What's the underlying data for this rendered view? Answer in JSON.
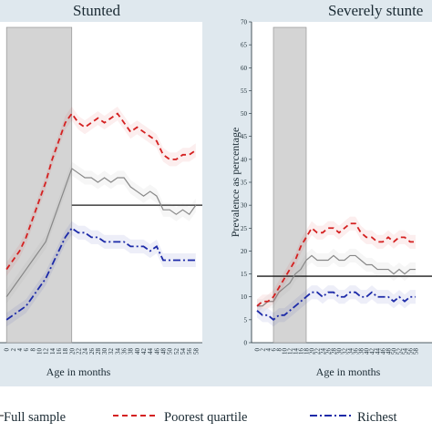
{
  "chart_data": [
    {
      "type": "line",
      "title": "Stunted",
      "xlabel": "Age in months",
      "ylabel": "",
      "x_range": [
        0,
        59
      ],
      "y_range": [
        0,
        70
      ],
      "shaded_region": [
        0,
        20
      ],
      "reference_line": 30,
      "x_tick_labels": [
        "0",
        "2",
        "4",
        "6",
        "8",
        "10",
        "12",
        "14",
        "16",
        "18",
        "20",
        "22",
        "24",
        "26",
        "28",
        "30",
        "32",
        "34",
        "36",
        "38",
        "40",
        "42",
        "44",
        "46",
        "48",
        "50",
        "52",
        "54",
        "56",
        "58"
      ],
      "series": [
        {
          "name": "Full sample",
          "color": "#888888",
          "style": "solid",
          "x": [
            0,
            2,
            4,
            6,
            8,
            10,
            12,
            14,
            16,
            18,
            20,
            22,
            24,
            26,
            28,
            30,
            32,
            34,
            36,
            38,
            40,
            42,
            44,
            46,
            48,
            50,
            52,
            54,
            56,
            58
          ],
          "y": [
            10,
            12,
            14,
            16,
            18,
            20,
            22,
            26,
            30,
            34,
            38,
            37,
            36,
            36,
            35,
            36,
            35,
            36,
            36,
            34,
            33,
            32,
            33,
            32,
            29,
            29,
            28,
            29,
            28,
            30
          ]
        },
        {
          "name": "Poorest quartile",
          "color": "#d42020",
          "style": "dashed",
          "x": [
            0,
            2,
            4,
            6,
            8,
            10,
            12,
            14,
            16,
            18,
            20,
            22,
            24,
            26,
            28,
            30,
            32,
            34,
            36,
            38,
            40,
            42,
            44,
            46,
            48,
            50,
            52,
            54,
            56,
            58
          ],
          "y": [
            16,
            18,
            20,
            23,
            27,
            31,
            35,
            40,
            44,
            48,
            50,
            48,
            47,
            48,
            49,
            48,
            49,
            50,
            48,
            46,
            47,
            46,
            45,
            44,
            41,
            40,
            40,
            41,
            41,
            42
          ]
        },
        {
          "name": "Richest",
          "color": "#1c2aa8",
          "style": "dashdot",
          "x": [
            0,
            2,
            4,
            6,
            8,
            10,
            12,
            14,
            16,
            18,
            20,
            22,
            24,
            26,
            28,
            30,
            32,
            34,
            36,
            38,
            40,
            42,
            44,
            46,
            48,
            50,
            52,
            54,
            56,
            58
          ],
          "y": [
            5,
            6,
            7,
            8,
            10,
            12,
            14,
            17,
            20,
            23,
            25,
            24,
            24,
            23,
            23,
            22,
            22,
            22,
            22,
            21,
            21,
            21,
            20,
            21,
            18,
            18,
            18,
            18,
            18,
            18
          ]
        }
      ]
    },
    {
      "type": "line",
      "title": "Severely stunte",
      "xlabel": "Age in months",
      "ylabel": "Prevalence as percentage",
      "x_range": [
        0,
        59
      ],
      "y_range": [
        0,
        70
      ],
      "y_ticks": [
        0,
        5,
        10,
        15,
        20,
        25,
        30,
        35,
        40,
        45,
        50,
        55,
        60,
        65,
        70
      ],
      "shaded_region": [
        6,
        18
      ],
      "reference_line": 14.5,
      "x_tick_labels": [
        "0",
        "2",
        "4",
        "6",
        "8",
        "10",
        "12",
        "14",
        "16",
        "18",
        "20",
        "22",
        "24",
        "26",
        "28",
        "30",
        "32",
        "34",
        "36",
        "38",
        "40",
        "42",
        "44",
        "46",
        "48",
        "50",
        "52",
        "54",
        "56",
        "58"
      ],
      "series": [
        {
          "name": "Full sample",
          "color": "#888888",
          "style": "solid",
          "x": [
            0,
            2,
            4,
            6,
            8,
            10,
            12,
            14,
            16,
            18,
            20,
            22,
            24,
            26,
            28,
            30,
            32,
            34,
            36,
            38,
            40,
            42,
            44,
            46,
            48,
            50,
            52,
            54,
            56,
            58
          ],
          "y": [
            8,
            8,
            9,
            9,
            11,
            12,
            13,
            15,
            16,
            18,
            19,
            18,
            18,
            18,
            19,
            18,
            18,
            19,
            19,
            18,
            17,
            17,
            16,
            16,
            16,
            15,
            16,
            15,
            16,
            16
          ]
        },
        {
          "name": "Poorest quartile",
          "color": "#d42020",
          "style": "dashed",
          "x": [
            0,
            2,
            4,
            6,
            8,
            10,
            12,
            14,
            16,
            18,
            20,
            22,
            24,
            26,
            28,
            30,
            32,
            34,
            36,
            38,
            40,
            42,
            44,
            46,
            48,
            50,
            52,
            54,
            56,
            58
          ],
          "y": [
            8,
            9,
            9,
            10,
            12,
            14,
            16,
            18,
            21,
            23,
            25,
            24,
            24,
            25,
            25,
            24,
            25,
            26,
            26,
            24,
            23,
            23,
            22,
            22,
            23,
            22,
            23,
            23,
            22,
            22
          ]
        },
        {
          "name": "Richest",
          "color": "#1c2aa8",
          "style": "dashdot",
          "x": [
            0,
            2,
            4,
            6,
            8,
            10,
            12,
            14,
            16,
            18,
            20,
            22,
            24,
            26,
            28,
            30,
            32,
            34,
            36,
            38,
            40,
            42,
            44,
            46,
            48,
            50,
            52,
            54,
            56,
            58
          ],
          "y": [
            7,
            6,
            6,
            5,
            6,
            6,
            7,
            8,
            9,
            10,
            11,
            11,
            10,
            11,
            11,
            10,
            10,
            11,
            11,
            10,
            10,
            11,
            10,
            10,
            10,
            9,
            10,
            9,
            10,
            10
          ]
        }
      ]
    }
  ],
  "legend": {
    "items": [
      {
        "label": "Full sample",
        "color": "#888888",
        "style": "solid"
      },
      {
        "label": "Poorest quartile",
        "color": "#d42020",
        "style": "dashed"
      },
      {
        "label": "Richest",
        "color": "#1c2aa8",
        "style": "dashdot"
      }
    ]
  }
}
